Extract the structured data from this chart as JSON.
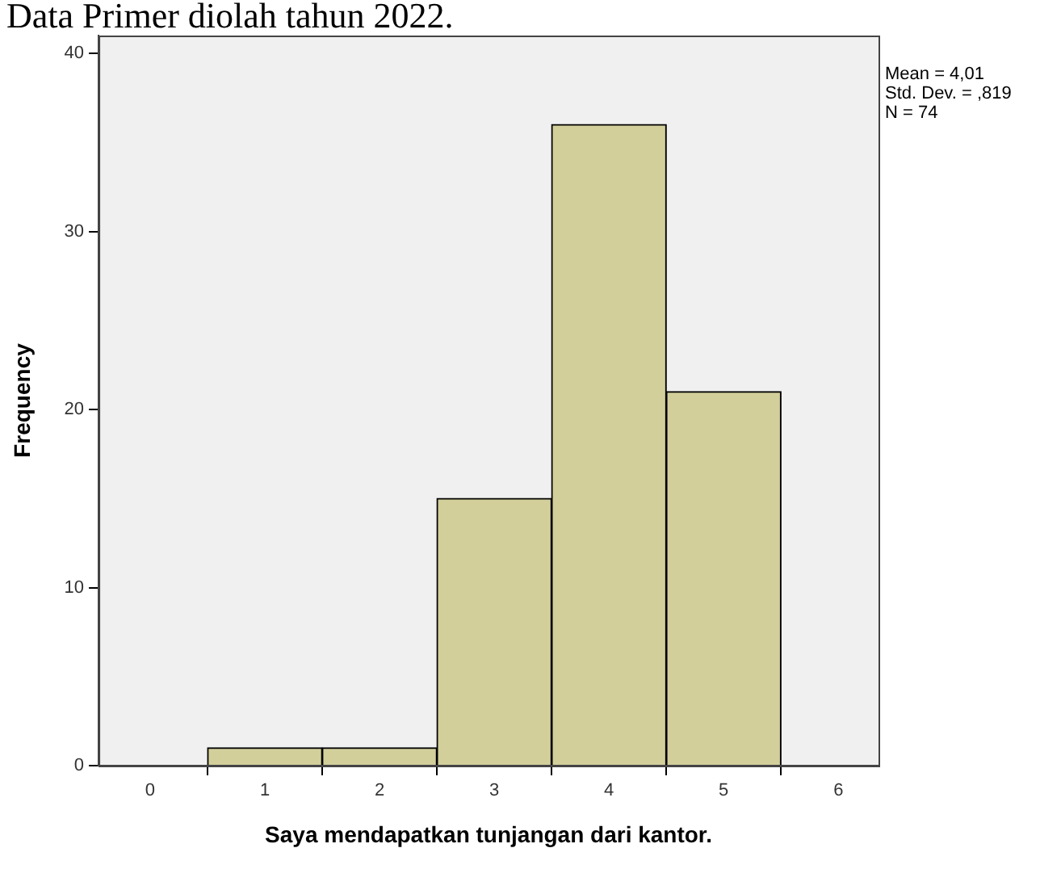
{
  "chart_data": {
    "type": "histogram",
    "xlabel": "Saya mendapatkan tunjangan dari kantor.",
    "ylabel": "Frequency",
    "bins": [
      0.5,
      1.5,
      2.5,
      3.5,
      4.5,
      5.5
    ],
    "values": [
      1,
      1,
      15,
      36,
      21
    ],
    "color": "#d3cf9b",
    "xlim": [
      -0.45,
      6.35
    ],
    "xticks": [
      0,
      1,
      2,
      3,
      4,
      5,
      6
    ],
    "ylim": [
      0,
      41
    ],
    "yticks": [
      0,
      10,
      20,
      30,
      40
    ],
    "grid": false,
    "annotations": [
      "Data Primer diolah tahun 2022.",
      "Mean = 4,01",
      "Std. Dev. = ,819",
      "N = 74"
    ]
  }
}
